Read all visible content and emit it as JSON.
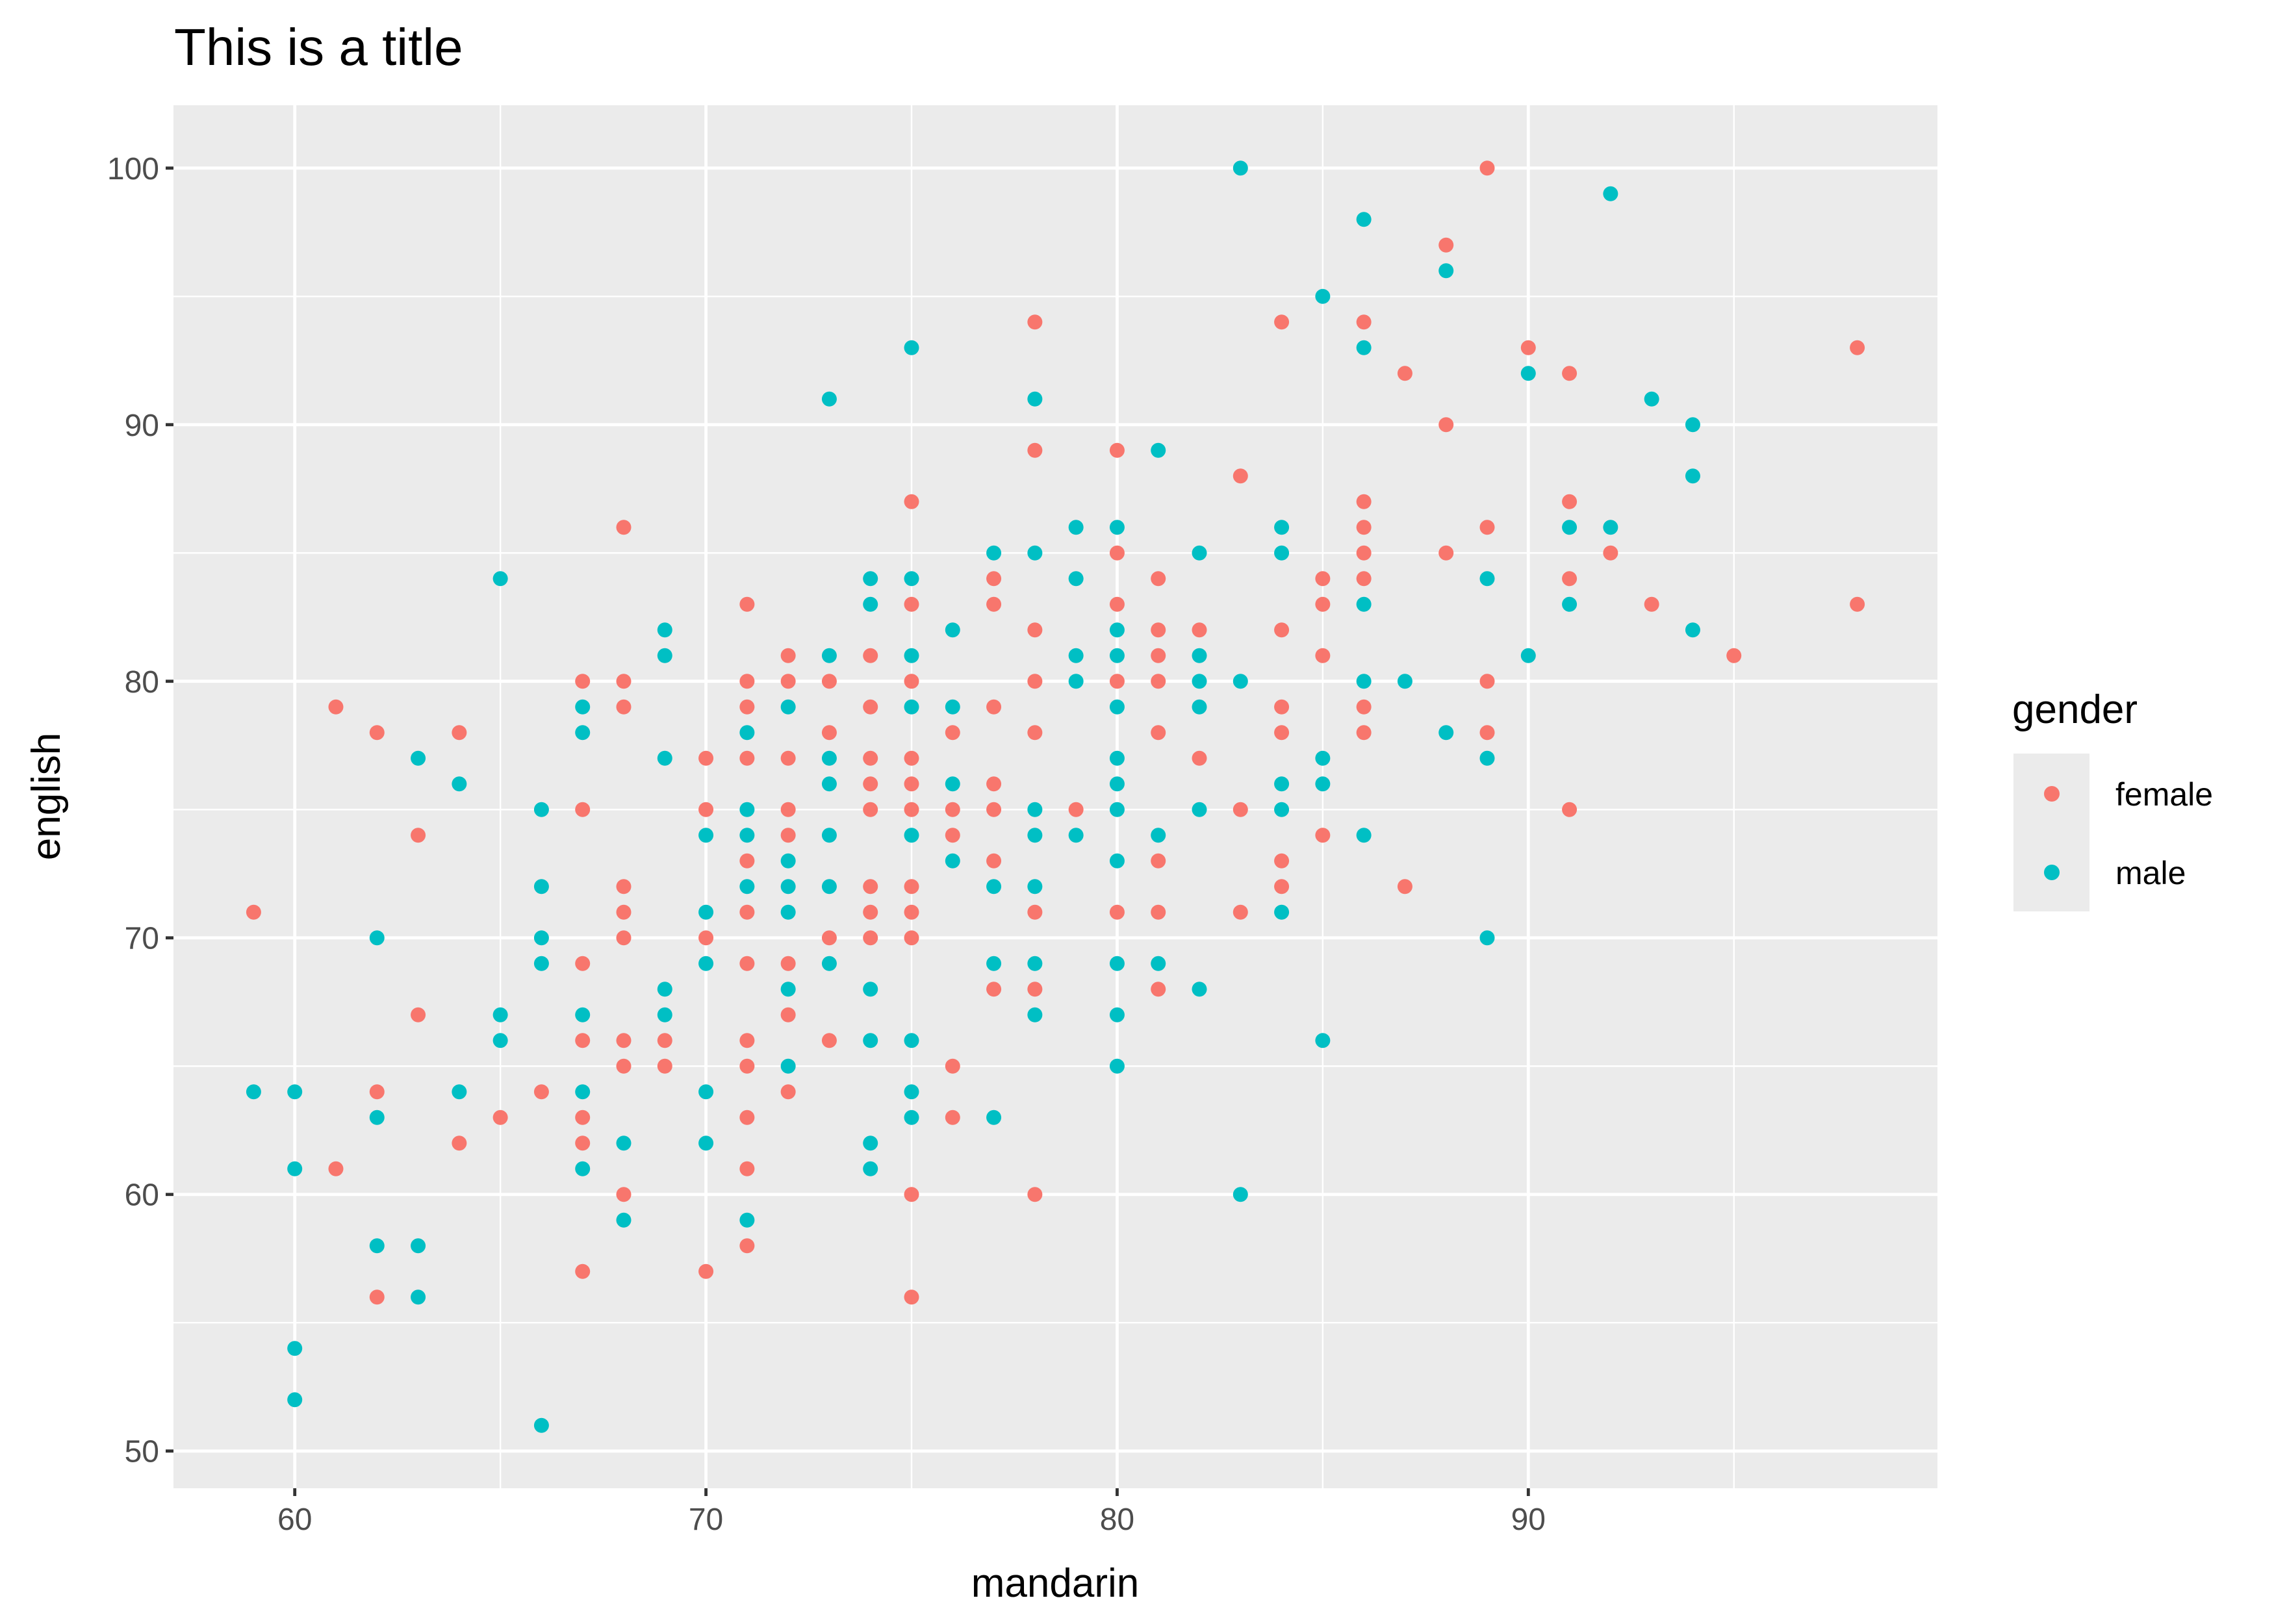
{
  "chart_data": {
    "type": "scatter",
    "title": "This is a title",
    "xlabel": "mandarin",
    "ylabel": "english",
    "xlim": [
      57.05,
      99.95
    ],
    "ylim": [
      48.55,
      102.45
    ],
    "xticks": [
      "60",
      "70",
      "80",
      "90"
    ],
    "yticks": [
      "50",
      "60",
      "70",
      "80",
      "90",
      "100"
    ],
    "grid": true,
    "legend": {
      "title": "gender",
      "placement": "right",
      "entries": [
        "female",
        "male"
      ]
    },
    "colors": {
      "female": "#F8766D",
      "male": "#00BFC4",
      "panel": "#EBEBEB"
    },
    "series": [
      {
        "name": "female",
        "points": [
          [
            59,
            71
          ],
          [
            61,
            79
          ],
          [
            61,
            61
          ],
          [
            62,
            78
          ],
          [
            62,
            64
          ],
          [
            62,
            56
          ],
          [
            63,
            74
          ],
          [
            63,
            67
          ],
          [
            64,
            78
          ],
          [
            64,
            62
          ],
          [
            65,
            63
          ],
          [
            66,
            64
          ],
          [
            67,
            80
          ],
          [
            67,
            75
          ],
          [
            67,
            69
          ],
          [
            67,
            66
          ],
          [
            67,
            63
          ],
          [
            67,
            62
          ],
          [
            67,
            57
          ],
          [
            68,
            86
          ],
          [
            68,
            80
          ],
          [
            68,
            79
          ],
          [
            68,
            72
          ],
          [
            68,
            71
          ],
          [
            68,
            70
          ],
          [
            68,
            66
          ],
          [
            68,
            65
          ],
          [
            68,
            60
          ],
          [
            69,
            66
          ],
          [
            69,
            65
          ],
          [
            70,
            77
          ],
          [
            70,
            75
          ],
          [
            70,
            70
          ],
          [
            70,
            57
          ],
          [
            71,
            83
          ],
          [
            71,
            80
          ],
          [
            71,
            79
          ],
          [
            71,
            77
          ],
          [
            71,
            73
          ],
          [
            71,
            71
          ],
          [
            71,
            69
          ],
          [
            71,
            66
          ],
          [
            71,
            65
          ],
          [
            71,
            63
          ],
          [
            71,
            61
          ],
          [
            71,
            58
          ],
          [
            72,
            81
          ],
          [
            72,
            80
          ],
          [
            72,
            77
          ],
          [
            72,
            75
          ],
          [
            72,
            74
          ],
          [
            72,
            69
          ],
          [
            72,
            67
          ],
          [
            72,
            64
          ],
          [
            73,
            80
          ],
          [
            73,
            78
          ],
          [
            73,
            70
          ],
          [
            73,
            66
          ],
          [
            74,
            81
          ],
          [
            74,
            79
          ],
          [
            74,
            77
          ],
          [
            74,
            76
          ],
          [
            74,
            75
          ],
          [
            74,
            72
          ],
          [
            74,
            71
          ],
          [
            74,
            70
          ],
          [
            75,
            87
          ],
          [
            75,
            83
          ],
          [
            75,
            80
          ],
          [
            75,
            77
          ],
          [
            75,
            76
          ],
          [
            75,
            75
          ],
          [
            75,
            72
          ],
          [
            75,
            71
          ],
          [
            75,
            70
          ],
          [
            75,
            60
          ],
          [
            75,
            56
          ],
          [
            76,
            78
          ],
          [
            76,
            75
          ],
          [
            76,
            74
          ],
          [
            76,
            65
          ],
          [
            76,
            63
          ],
          [
            77,
            84
          ],
          [
            77,
            83
          ],
          [
            77,
            79
          ],
          [
            77,
            76
          ],
          [
            77,
            75
          ],
          [
            77,
            73
          ],
          [
            77,
            68
          ],
          [
            78,
            94
          ],
          [
            78,
            89
          ],
          [
            78,
            82
          ],
          [
            78,
            80
          ],
          [
            78,
            78
          ],
          [
            78,
            71
          ],
          [
            78,
            68
          ],
          [
            78,
            60
          ],
          [
            79,
            75
          ],
          [
            80,
            89
          ],
          [
            80,
            85
          ],
          [
            80,
            83
          ],
          [
            80,
            80
          ],
          [
            80,
            71
          ],
          [
            81,
            84
          ],
          [
            81,
            82
          ],
          [
            81,
            81
          ],
          [
            81,
            80
          ],
          [
            81,
            78
          ],
          [
            81,
            73
          ],
          [
            81,
            71
          ],
          [
            81,
            68
          ],
          [
            82,
            82
          ],
          [
            82,
            77
          ],
          [
            83,
            88
          ],
          [
            83,
            75
          ],
          [
            83,
            71
          ],
          [
            84,
            94
          ],
          [
            84,
            82
          ],
          [
            84,
            79
          ],
          [
            84,
            78
          ],
          [
            84,
            73
          ],
          [
            84,
            72
          ],
          [
            85,
            84
          ],
          [
            85,
            83
          ],
          [
            85,
            81
          ],
          [
            85,
            74
          ],
          [
            86,
            94
          ],
          [
            86,
            87
          ],
          [
            86,
            86
          ],
          [
            86,
            85
          ],
          [
            86,
            84
          ],
          [
            86,
            79
          ],
          [
            86,
            78
          ],
          [
            87,
            92
          ],
          [
            87,
            72
          ],
          [
            88,
            97
          ],
          [
            88,
            90
          ],
          [
            88,
            85
          ],
          [
            89,
            100
          ],
          [
            89,
            86
          ],
          [
            89,
            80
          ],
          [
            89,
            78
          ],
          [
            90,
            93
          ],
          [
            91,
            92
          ],
          [
            91,
            87
          ],
          [
            91,
            84
          ],
          [
            91,
            75
          ],
          [
            92,
            85
          ],
          [
            93,
            83
          ],
          [
            95,
            81
          ],
          [
            98,
            93
          ],
          [
            98,
            83
          ]
        ]
      },
      {
        "name": "male",
        "points": [
          [
            59,
            64
          ],
          [
            60,
            64
          ],
          [
            60,
            61
          ],
          [
            60,
            54
          ],
          [
            60,
            52
          ],
          [
            62,
            70
          ],
          [
            62,
            63
          ],
          [
            62,
            58
          ],
          [
            63,
            77
          ],
          [
            63,
            58
          ],
          [
            63,
            56
          ],
          [
            64,
            76
          ],
          [
            64,
            64
          ],
          [
            65,
            84
          ],
          [
            65,
            67
          ],
          [
            65,
            66
          ],
          [
            66,
            75
          ],
          [
            66,
            72
          ],
          [
            66,
            70
          ],
          [
            66,
            69
          ],
          [
            66,
            51
          ],
          [
            67,
            79
          ],
          [
            67,
            78
          ],
          [
            67,
            67
          ],
          [
            67,
            64
          ],
          [
            67,
            61
          ],
          [
            68,
            62
          ],
          [
            68,
            59
          ],
          [
            69,
            82
          ],
          [
            69,
            81
          ],
          [
            69,
            77
          ],
          [
            69,
            68
          ],
          [
            69,
            67
          ],
          [
            70,
            74
          ],
          [
            70,
            71
          ],
          [
            70,
            69
          ],
          [
            70,
            64
          ],
          [
            70,
            62
          ],
          [
            71,
            78
          ],
          [
            71,
            75
          ],
          [
            71,
            74
          ],
          [
            71,
            72
          ],
          [
            71,
            59
          ],
          [
            72,
            79
          ],
          [
            72,
            73
          ],
          [
            72,
            72
          ],
          [
            72,
            71
          ],
          [
            72,
            68
          ],
          [
            72,
            65
          ],
          [
            73,
            91
          ],
          [
            73,
            81
          ],
          [
            73,
            77
          ],
          [
            73,
            76
          ],
          [
            73,
            74
          ],
          [
            73,
            72
          ],
          [
            73,
            69
          ],
          [
            74,
            84
          ],
          [
            74,
            83
          ],
          [
            74,
            68
          ],
          [
            74,
            66
          ],
          [
            74,
            62
          ],
          [
            74,
            61
          ],
          [
            75,
            93
          ],
          [
            75,
            84
          ],
          [
            75,
            81
          ],
          [
            75,
            79
          ],
          [
            75,
            74
          ],
          [
            75,
            66
          ],
          [
            75,
            64
          ],
          [
            75,
            63
          ],
          [
            76,
            82
          ],
          [
            76,
            79
          ],
          [
            76,
            76
          ],
          [
            76,
            73
          ],
          [
            77,
            85
          ],
          [
            77,
            72
          ],
          [
            77,
            69
          ],
          [
            77,
            63
          ],
          [
            78,
            91
          ],
          [
            78,
            85
          ],
          [
            78,
            75
          ],
          [
            78,
            74
          ],
          [
            78,
            72
          ],
          [
            78,
            69
          ],
          [
            78,
            67
          ],
          [
            79,
            86
          ],
          [
            79,
            84
          ],
          [
            79,
            81
          ],
          [
            79,
            80
          ],
          [
            79,
            74
          ],
          [
            80,
            86
          ],
          [
            80,
            82
          ],
          [
            80,
            81
          ],
          [
            80,
            79
          ],
          [
            80,
            77
          ],
          [
            80,
            76
          ],
          [
            80,
            75
          ],
          [
            80,
            73
          ],
          [
            80,
            69
          ],
          [
            80,
            67
          ],
          [
            80,
            65
          ],
          [
            81,
            89
          ],
          [
            81,
            74
          ],
          [
            81,
            69
          ],
          [
            82,
            85
          ],
          [
            82,
            81
          ],
          [
            82,
            80
          ],
          [
            82,
            79
          ],
          [
            82,
            75
          ],
          [
            82,
            68
          ],
          [
            83,
            100
          ],
          [
            83,
            80
          ],
          [
            83,
            60
          ],
          [
            84,
            86
          ],
          [
            84,
            85
          ],
          [
            84,
            76
          ],
          [
            84,
            75
          ],
          [
            84,
            71
          ],
          [
            85,
            95
          ],
          [
            85,
            77
          ],
          [
            85,
            76
          ],
          [
            85,
            66
          ],
          [
            86,
            98
          ],
          [
            86,
            93
          ],
          [
            86,
            83
          ],
          [
            86,
            80
          ],
          [
            86,
            74
          ],
          [
            87,
            80
          ],
          [
            88,
            96
          ],
          [
            88,
            78
          ],
          [
            89,
            84
          ],
          [
            89,
            77
          ],
          [
            89,
            70
          ],
          [
            90,
            92
          ],
          [
            90,
            81
          ],
          [
            91,
            86
          ],
          [
            91,
            83
          ],
          [
            92,
            99
          ],
          [
            92,
            86
          ],
          [
            93,
            91
          ],
          [
            94,
            90
          ],
          [
            94,
            88
          ],
          [
            94,
            82
          ]
        ]
      }
    ]
  }
}
